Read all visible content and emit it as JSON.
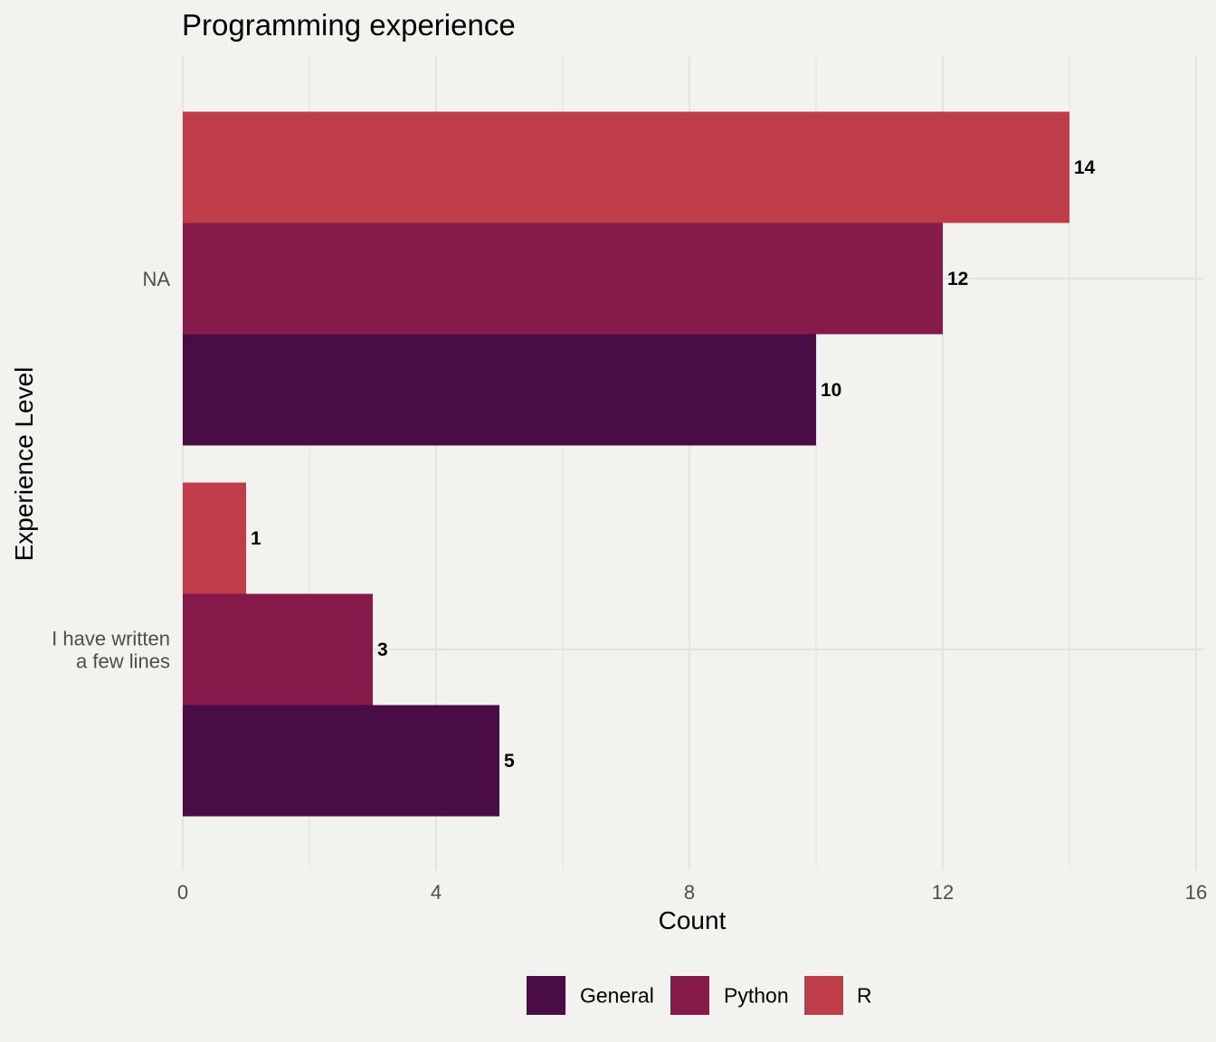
{
  "chart_data": {
    "type": "bar",
    "orientation": "horizontal",
    "title": "Programming experience",
    "xlabel": "Count",
    "ylabel": "Experience Level",
    "xlim": [
      0,
      16
    ],
    "xticks": [
      "0",
      "4",
      "8",
      "12",
      "16"
    ],
    "grid": true,
    "legend_position": "bottom",
    "categories": [
      "NA",
      "I have written\na few lines"
    ],
    "series": [
      {
        "name": "General",
        "color": "#4a0c45",
        "values": [
          10,
          5
        ]
      },
      {
        "name": "Python",
        "color": "#861a4a",
        "values": [
          12,
          3
        ]
      },
      {
        "name": "R",
        "color": "#bf3c49",
        "values": [
          14,
          1
        ]
      }
    ]
  }
}
